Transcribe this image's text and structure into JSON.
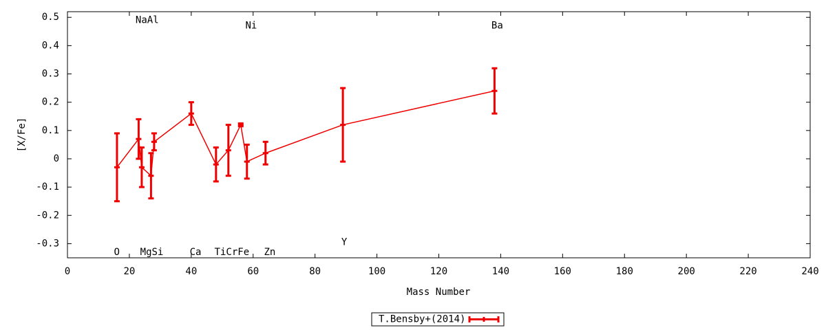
{
  "chart_data": {
    "type": "errorbar",
    "xlabel": "Mass Number",
    "ylabel": "[X/Fe]",
    "xlim": [
      0,
      240
    ],
    "ylim": [
      -0.35,
      0.52
    ],
    "xticks": [
      0,
      20,
      40,
      60,
      80,
      100,
      120,
      140,
      160,
      180,
      200,
      220,
      240
    ],
    "yticks": [
      -0.3,
      -0.2,
      -0.1,
      0,
      0.1,
      0.2,
      0.3,
      0.4,
      0.5
    ],
    "grid": false,
    "legend": "bottom",
    "series": [
      {
        "name": "T.Bensby+(2014)",
        "color": "#ee0000",
        "x": [
          16,
          23,
          24,
          27,
          28,
          40,
          48,
          52,
          56,
          58,
          64,
          89,
          138
        ],
        "values": [
          -0.03,
          0.07,
          -0.03,
          -0.06,
          0.06,
          0.16,
          -0.02,
          0.03,
          0.12,
          -0.01,
          0.02,
          0.12,
          0.24
        ],
        "errors": [
          0.12,
          0.07,
          0.07,
          0.08,
          0.03,
          0.04,
          0.06,
          0.09,
          0.005,
          0.06,
          0.04,
          0.13,
          0.08
        ]
      }
    ],
    "annotations": [
      {
        "text": "O",
        "x": 15,
        "y": -0.33
      },
      {
        "text": "NaAl",
        "x": 22,
        "y": 0.49
      },
      {
        "text": "MgSi",
        "x": 23.5,
        "y": -0.33
      },
      {
        "text": "Ca",
        "x": 39.5,
        "y": -0.33
      },
      {
        "text": "TiCrFe",
        "x": 47.5,
        "y": -0.33
      },
      {
        "text": "Ni",
        "x": 57.5,
        "y": 0.47
      },
      {
        "text": "Zn",
        "x": 63.5,
        "y": -0.33
      },
      {
        "text": "Y",
        "x": 88.5,
        "y": -0.295
      },
      {
        "text": "Ba",
        "x": 137,
        "y": 0.47
      }
    ]
  }
}
